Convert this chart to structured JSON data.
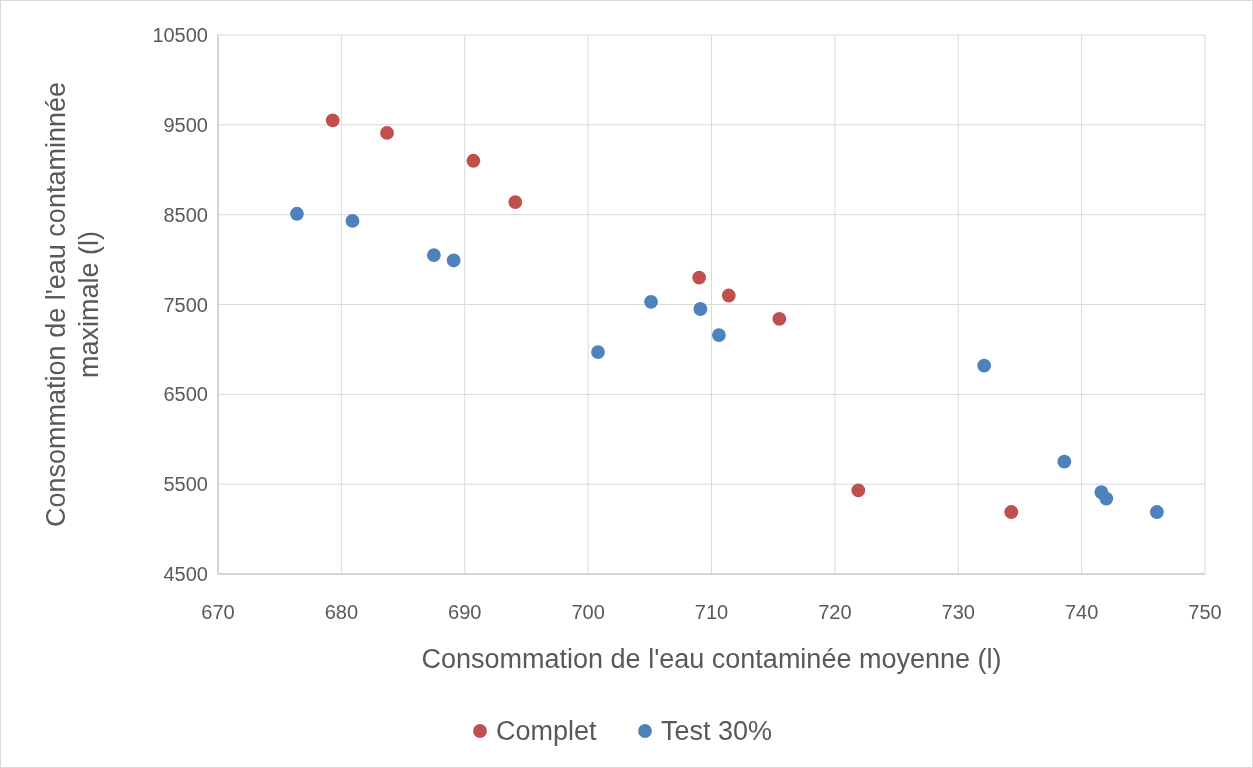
{
  "chart_data": {
    "type": "scatter",
    "xlabel": "Consommation de l'eau contaminée moyenne (l)",
    "ylabel": "Consommation de l'eau contaminnée maximale (l)",
    "xlim": [
      670,
      750
    ],
    "xticks": [
      670,
      680,
      690,
      700,
      710,
      720,
      730,
      740,
      750
    ],
    "ylim": [
      4500,
      10500
    ],
    "yticks": [
      4500,
      5500,
      6500,
      7500,
      8500,
      9500,
      10500
    ],
    "grid": true,
    "legend": "bottom",
    "marker": "circle",
    "series": [
      {
        "name": "Complet",
        "color": "#c0504d",
        "x": [
          679.3,
          683.7,
          690.7,
          694.1,
          709.0,
          711.4,
          715.5,
          721.9,
          734.3
        ],
        "values": [
          9550,
          9410,
          9100,
          8640,
          7800,
          7600,
          7340,
          5430,
          5190
        ]
      },
      {
        "name": "Test 30%",
        "color": "#4f81bd",
        "x": [
          676.4,
          680.9,
          687.5,
          689.1,
          700.8,
          705.1,
          709.1,
          710.6,
          732.1,
          738.6,
          741.6,
          742.0,
          746.1
        ],
        "values": [
          8510,
          8430,
          8050,
          7990,
          6970,
          7530,
          7450,
          7160,
          6820,
          5750,
          5410,
          5340,
          5190
        ]
      }
    ]
  }
}
